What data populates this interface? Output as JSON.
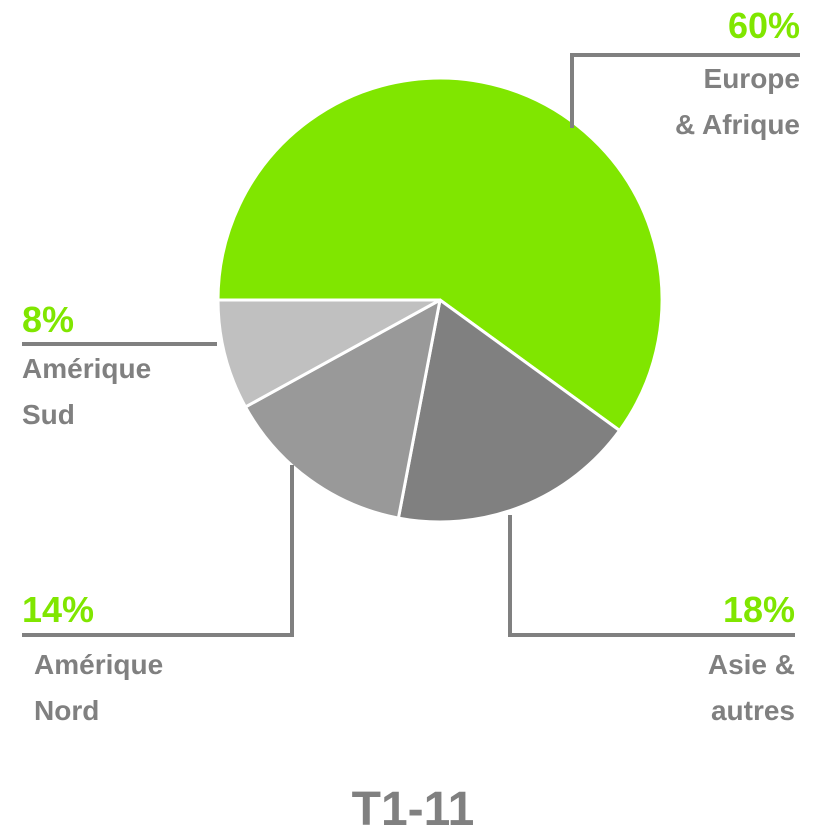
{
  "chart_data": {
    "type": "pie",
    "title": "T1-11",
    "categories": [
      "Europe\n& Afrique",
      "Asie &\nautres",
      "Amérique\nNord",
      "Amérique\nSud"
    ],
    "values": [
      60,
      18,
      14,
      8
    ],
    "value_labels": [
      "60%",
      "18%",
      "14%",
      "8%"
    ],
    "colors": [
      "#80e600",
      "#808080",
      "#999999",
      "#c0c0c0"
    ],
    "label_color": "#80e600"
  }
}
